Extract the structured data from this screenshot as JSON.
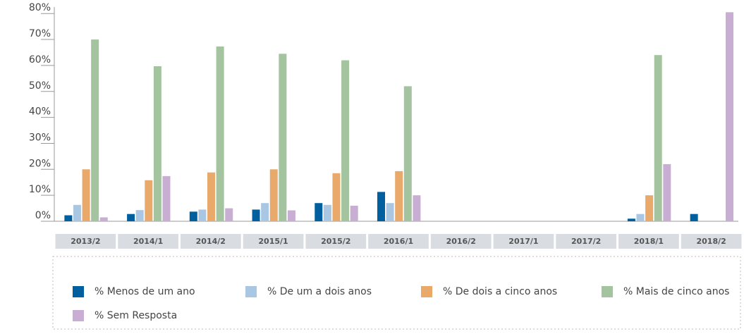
{
  "chart_data": {
    "type": "bar",
    "categories": [
      "2013/2",
      "2014/1",
      "2014/2",
      "2015/1",
      "2015/2",
      "2016/1",
      "2016/2",
      "2017/1",
      "2017/2",
      "2018/1",
      "2018/2"
    ],
    "series": [
      {
        "name": "% Menos de um ano",
        "color": "#005f9e",
        "values": [
          2.3,
          2.8,
          3.7,
          4.5,
          7,
          11.3,
          0,
          0,
          0,
          1,
          2.8
        ]
      },
      {
        "name": "% De um a dois anos",
        "color": "#a9c6e3",
        "values": [
          6.3,
          4.3,
          4.5,
          7,
          6.3,
          7,
          0,
          0,
          0,
          2.8,
          0
        ]
      },
      {
        "name": "% De dois a cinco anos",
        "color": "#e8a96b",
        "values": [
          20,
          15.8,
          18.8,
          20,
          18.5,
          19.3,
          0,
          0,
          0,
          10,
          0
        ]
      },
      {
        "name": "% Mais de cinco anos",
        "color": "#a3c49e",
        "values": [
          70,
          59.7,
          67.3,
          64.5,
          62,
          52,
          0,
          0,
          0,
          64,
          0
        ]
      },
      {
        "name": "% Sem Resposta",
        "color": "#c9aed4",
        "values": [
          1.5,
          17.4,
          5,
          4.2,
          6,
          10,
          0,
          0,
          0,
          22,
          80.5
        ]
      }
    ],
    "ylim": [
      0,
      82.5
    ],
    "yticks": [
      {
        "value": 0,
        "label": "0%"
      },
      {
        "value": 10,
        "label": "10%"
      },
      {
        "value": 20,
        "label": "20%"
      },
      {
        "value": 30,
        "label": "30%"
      },
      {
        "value": 40,
        "label": "40%"
      },
      {
        "value": 50,
        "label": "50%"
      },
      {
        "value": 60,
        "label": "60%"
      },
      {
        "value": 70,
        "label": "70%"
      },
      {
        "value": 80,
        "label": "80%"
      }
    ],
    "legend": "bottom"
  }
}
